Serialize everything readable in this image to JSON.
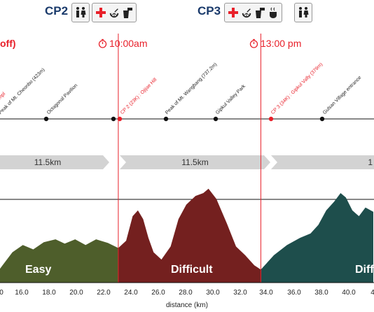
{
  "checkpoints": [
    {
      "title": "CP2",
      "icons": [
        "restroom-icon",
        "first-aid-icon",
        "fruit-icon",
        "drink-icon"
      ]
    },
    {
      "title": "CP3",
      "icons": [
        "first-aid-icon",
        "fruit-icon",
        "drink-icon",
        "hot-food-icon",
        "restroom-icon"
      ]
    }
  ],
  "left_partial_text": "off)",
  "times": [
    "10:00am",
    "13:00 pm"
  ],
  "waypoints": [
    {
      "label": "Templ",
      "color": "#e8202a"
    },
    {
      "label": "Peak of Mt. Cheonbo (423m)",
      "color": "#222222"
    },
    {
      "label": "Octagonal Pavilion",
      "color": "#222222"
    },
    {
      "label": "CP 2 (23K) : Ojijae Hill",
      "color": "#e8202a"
    },
    {
      "label": "Peak of Mt. Wangbang (737.2m)",
      "color": "#222222"
    },
    {
      "label": "Gipkul Valley Park",
      "color": "#222222"
    },
    {
      "label": "CP 3 (34K) : Gipkul Vally (379m)",
      "color": "#e8202a"
    },
    {
      "label": "Gulsan Village entrance",
      "color": "#222222"
    }
  ],
  "segments": [
    "11.5km",
    "11.5km",
    "1"
  ],
  "difficulty": [
    {
      "label": "Easy",
      "color": "#4e5e2b"
    },
    {
      "label": "Difficult",
      "color": "#74201f"
    },
    {
      "label": "Diff",
      "color": "#1e4e4c"
    }
  ],
  "chart_data": {
    "type": "area",
    "xlabel": "distance (km)",
    "x_ticks": [
      "0",
      "16.0",
      "18.0",
      "20.0",
      "22.0",
      "24.0",
      "26.0",
      "28.0",
      "30.0",
      "32.0",
      "34.0",
      "36.0",
      "38.0",
      "40.0",
      "4"
    ],
    "xlim": [
      14.0,
      42.6
    ],
    "sections": [
      {
        "label": "Easy",
        "color": "#4e5e2b",
        "x": [
          14.0,
          15.0,
          15.8,
          16.6,
          17.4,
          18.3,
          19.0,
          19.8,
          20.6,
          21.4,
          22.3,
          23.1
        ],
        "y": [
          0.18,
          0.42,
          0.52,
          0.46,
          0.56,
          0.6,
          0.54,
          0.6,
          0.52,
          0.6,
          0.55,
          0.48
        ]
      },
      {
        "label": "Difficult",
        "color": "#74201f",
        "x": [
          23.1,
          23.7,
          24.2,
          24.6,
          25.0,
          25.4,
          25.8,
          26.4,
          27.1,
          27.7,
          28.3,
          29.0,
          29.6,
          30.0,
          30.6,
          31.4,
          32.1,
          32.8,
          33.5,
          34.0
        ],
        "y": [
          0.48,
          0.58,
          0.92,
          1.0,
          0.88,
          0.62,
          0.42,
          0.32,
          0.5,
          0.88,
          1.08,
          1.2,
          1.24,
          1.3,
          1.16,
          0.82,
          0.5,
          0.38,
          0.24,
          0.18
        ]
      },
      {
        "label": "Diff",
        "color": "#1e4e4c",
        "x": [
          34.0,
          35.0,
          36.0,
          37.0,
          37.8,
          38.4,
          39.0,
          39.6,
          40.1,
          40.5,
          41.0,
          41.5,
          42.0,
          42.6
        ],
        "y": [
          0.18,
          0.38,
          0.52,
          0.62,
          0.68,
          0.8,
          1.0,
          1.12,
          1.24,
          1.18,
          1.0,
          0.92,
          1.04,
          0.98
        ]
      }
    ],
    "markers": [
      23.1,
      34.0
    ]
  }
}
